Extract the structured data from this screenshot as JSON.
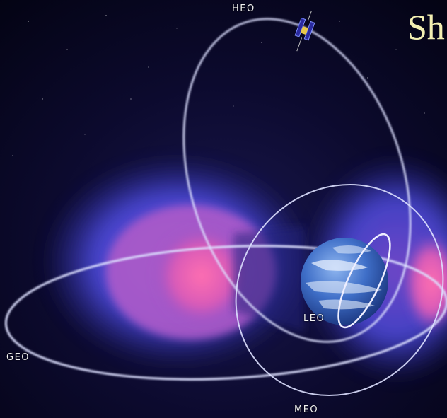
{
  "slide_title_fragment": "Sh",
  "orbits": {
    "heo_label": "HEO",
    "leo_label": "LEO",
    "geo_label": "GEO",
    "meo_label": "MEO"
  },
  "colors": {
    "space_background": "#050515",
    "radiation_belt_outer": "#3a40c8",
    "radiation_belt_inner": "#e050b0",
    "orbit_line": "#d8dcff",
    "title_text": "#f3efb2"
  },
  "icons": {
    "satellite": "satellite-icon",
    "earth": "earth-globe"
  }
}
